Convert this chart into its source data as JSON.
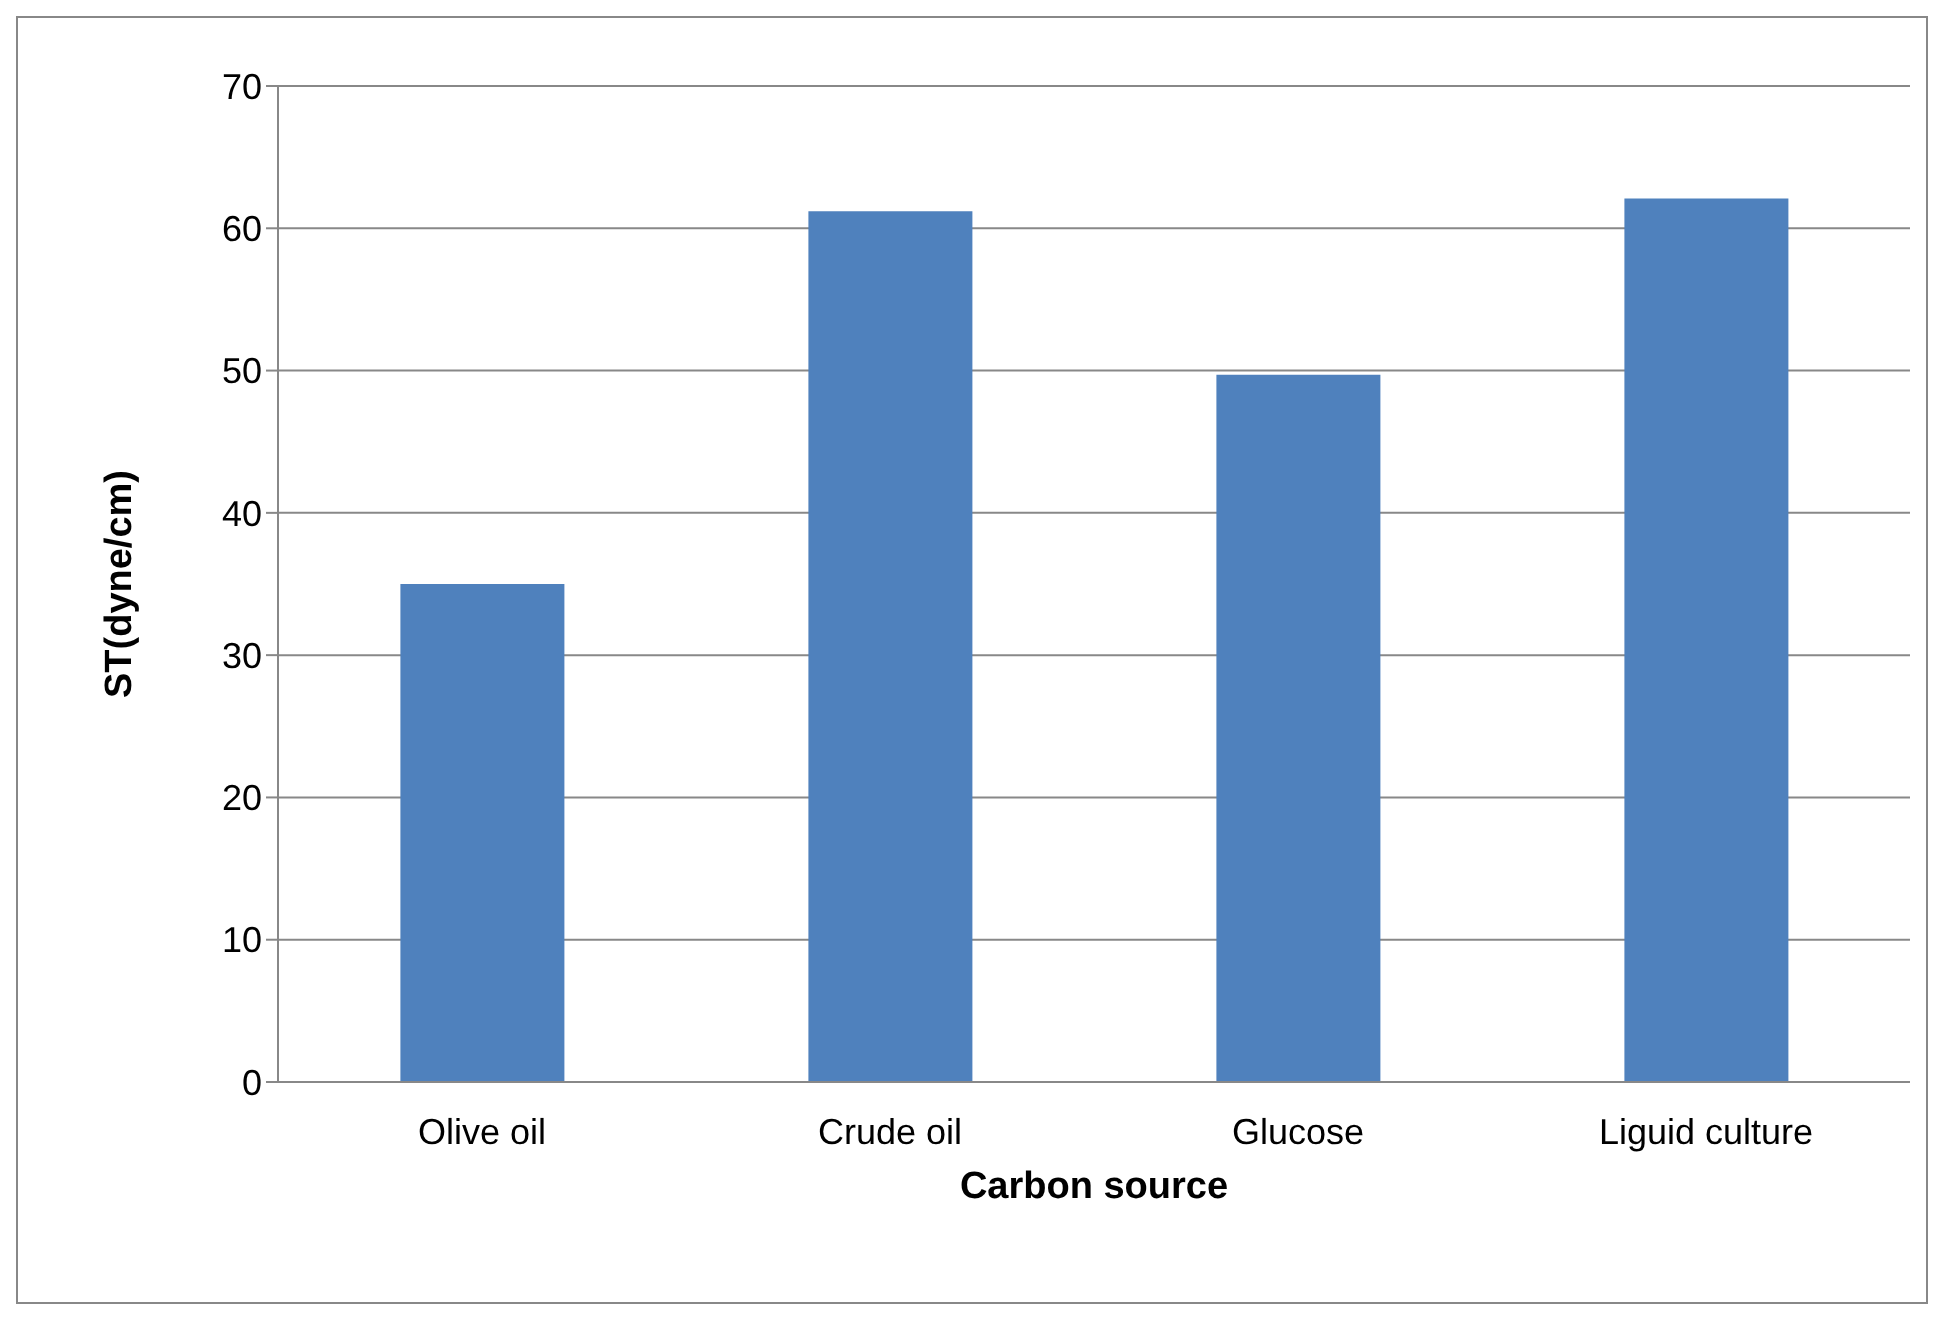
{
  "chart_data": {
    "type": "bar",
    "xlabel": "Carbon source",
    "ylabel": "ST(dyne/cm)",
    "categories": [
      "Olive oil",
      "Crude oil",
      "Glucose",
      "Liguid culture"
    ],
    "values": [
      35.0,
      61.2,
      49.7,
      62.1
    ],
    "color": "#4f81bd",
    "ylim": [
      0,
      70
    ],
    "yticks": [
      0,
      10,
      20,
      30,
      40,
      50,
      60,
      70
    ],
    "grid": "y",
    "legend": false
  }
}
